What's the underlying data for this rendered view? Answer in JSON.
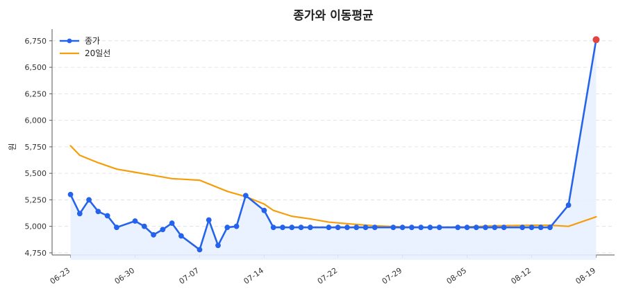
{
  "chart_data": {
    "type": "line",
    "title": "종가와 이동평균",
    "xlabel": "",
    "ylabel": "원",
    "ylim": [
      4730,
      6860
    ],
    "y_ticks": [
      4750,
      5000,
      5250,
      5500,
      5750,
      6000,
      6250,
      6500,
      6750
    ],
    "y_tick_labels": [
      "4,750",
      "5,000",
      "5,250",
      "5,500",
      "5,750",
      "6,000",
      "6,250",
      "6,500",
      "6,750"
    ],
    "x_ticks": [
      "2024-06-23",
      "2024-06-30",
      "2024-07-07",
      "2024-07-14",
      "2024-07-22",
      "2024-07-29",
      "2024-08-05",
      "2024-08-12",
      "2024-08-19"
    ],
    "x_tick_labels": [
      "06-23",
      "06-30",
      "07-07",
      "07-14",
      "07-22",
      "07-29",
      "08-05",
      "08-12",
      "08-19"
    ],
    "grid": true,
    "legend_position": "top-left",
    "x": [
      "2024-06-23",
      "2024-06-24",
      "2024-06-25",
      "2024-06-26",
      "2024-06-27",
      "2024-06-28",
      "2024-06-29",
      "2024-06-30",
      "2024-07-01",
      "2024-07-02",
      "2024-07-03",
      "2024-07-04",
      "2024-07-05",
      "2024-07-06",
      "2024-07-07",
      "2024-07-08",
      "2024-07-09",
      "2024-07-10",
      "2024-07-11",
      "2024-07-12",
      "2024-07-13",
      "2024-07-14",
      "2024-07-15",
      "2024-07-16",
      "2024-07-17",
      "2024-07-18",
      "2024-07-19",
      "2024-07-20",
      "2024-07-21",
      "2024-07-22",
      "2024-07-23",
      "2024-07-24",
      "2024-07-25",
      "2024-07-26",
      "2024-07-27",
      "2024-07-28",
      "2024-07-29",
      "2024-07-30",
      "2024-07-31",
      "2024-08-01",
      "2024-08-02",
      "2024-08-03",
      "2024-08-04",
      "2024-08-05",
      "2024-08-06",
      "2024-08-07",
      "2024-08-08",
      "2024-08-09",
      "2024-08-10",
      "2024-08-11",
      "2024-08-12",
      "2024-08-13",
      "2024-08-14",
      "2024-08-15",
      "2024-08-16",
      "2024-08-17",
      "2024-08-18",
      "2024-08-19"
    ],
    "series": [
      {
        "name": "종가",
        "color": "#2563eb",
        "marker": "circle",
        "fill": "#e8efff",
        "highlight_last_color": "#e04444",
        "x": [
          "2024-06-23",
          "2024-06-24",
          "2024-06-25",
          "2024-06-26",
          "2024-06-27",
          "2024-06-28",
          "2024-06-30",
          "2024-07-01",
          "2024-07-02",
          "2024-07-03",
          "2024-07-04",
          "2024-07-05",
          "2024-07-07",
          "2024-07-08",
          "2024-07-09",
          "2024-07-10",
          "2024-07-11",
          "2024-07-12",
          "2024-07-14",
          "2024-07-15",
          "2024-07-16",
          "2024-07-17",
          "2024-07-18",
          "2024-07-19",
          "2024-07-21",
          "2024-07-22",
          "2024-07-23",
          "2024-07-24",
          "2024-07-25",
          "2024-07-26",
          "2024-07-28",
          "2024-07-29",
          "2024-07-30",
          "2024-07-31",
          "2024-08-01",
          "2024-08-02",
          "2024-08-04",
          "2024-08-05",
          "2024-08-06",
          "2024-08-07",
          "2024-08-08",
          "2024-08-09",
          "2024-08-11",
          "2024-08-12",
          "2024-08-13",
          "2024-08-14",
          "2024-08-16",
          "2024-08-19"
        ],
        "values": [
          5300,
          5120,
          5250,
          5140,
          5100,
          4990,
          5050,
          5000,
          4920,
          4970,
          5030,
          4910,
          4780,
          5060,
          4820,
          4990,
          5000,
          5290,
          5150,
          4990,
          4990,
          4990,
          4990,
          4990,
          4990,
          4990,
          4990,
          4990,
          4990,
          4990,
          4990,
          4990,
          4990,
          4990,
          4990,
          4990,
          4990,
          4990,
          4990,
          4990,
          4990,
          4990,
          4990,
          4990,
          4990,
          4990,
          5200,
          6760
        ]
      },
      {
        "name": "20일선",
        "color": "#f59e0b",
        "x": [
          "2024-06-23",
          "2024-06-24",
          "2024-06-26",
          "2024-06-28",
          "2024-06-30",
          "2024-07-02",
          "2024-07-04",
          "2024-07-05",
          "2024-07-07",
          "2024-07-08",
          "2024-07-10",
          "2024-07-12",
          "2024-07-14",
          "2024-07-15",
          "2024-07-17",
          "2024-07-19",
          "2024-07-21",
          "2024-07-23",
          "2024-07-26",
          "2024-07-29",
          "2024-08-01",
          "2024-08-05",
          "2024-08-08",
          "2024-08-12",
          "2024-08-14",
          "2024-08-16",
          "2024-08-19"
        ],
        "values": [
          5760,
          5670,
          5600,
          5540,
          5510,
          5480,
          5450,
          5445,
          5435,
          5400,
          5330,
          5280,
          5210,
          5150,
          5095,
          5070,
          5040,
          5025,
          5005,
          4995,
          4990,
          4995,
          5005,
          5010,
          5010,
          5000,
          5090
        ]
      }
    ]
  }
}
